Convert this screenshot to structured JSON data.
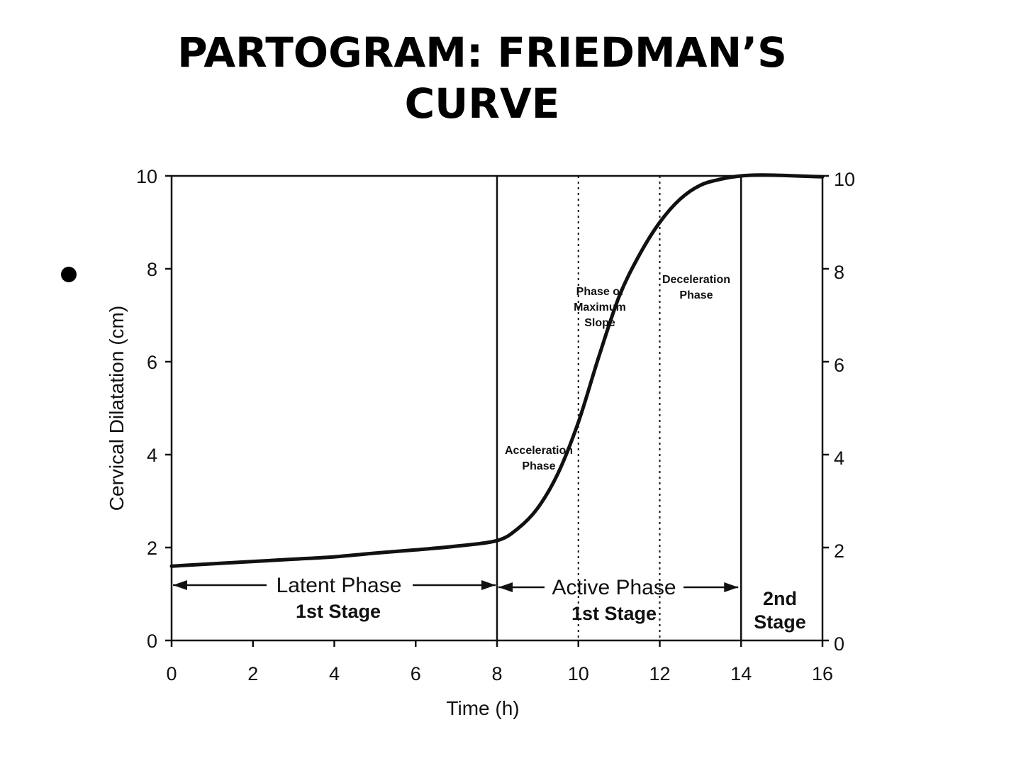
{
  "slide": {
    "title_line1": "PARTOGRAM: FRIEDMAN’S",
    "title_line2": "CURVE"
  },
  "chart_data": {
    "type": "line",
    "xlabel": "Time (h)",
    "ylabel": "Cervical Dilatation (cm)",
    "xlim": [
      0,
      16
    ],
    "ylim": [
      0,
      10
    ],
    "x_ticks": [
      0,
      2,
      4,
      6,
      8,
      10,
      12,
      14,
      16
    ],
    "y_ticks": [
      0,
      2,
      4,
      6,
      8,
      10
    ],
    "right_y_ticks": [
      0,
      2,
      4,
      6,
      8,
      10
    ],
    "grid": false,
    "legend": "none",
    "series": [
      {
        "x": [
          0,
          1,
          2,
          3,
          4,
          5,
          6,
          7,
          8,
          8.5,
          9,
          9.5,
          10,
          10.5,
          11,
          11.5,
          12,
          12.5,
          13,
          13.5,
          14,
          14.5,
          15,
          16
        ],
        "y": [
          1.6,
          1.65,
          1.7,
          1.75,
          1.8,
          1.88,
          1.95,
          2.03,
          2.15,
          2.4,
          2.85,
          3.6,
          4.7,
          6.1,
          7.4,
          8.3,
          9.0,
          9.5,
          9.8,
          9.93,
          10.0,
          10.02,
          10.01,
          9.98
        ]
      }
    ],
    "solid_vertical_lines": [
      8,
      14
    ],
    "dotted_vertical_lines": [
      10,
      12
    ],
    "phase_labels": {
      "acceleration": [
        "Acceleration",
        "Phase"
      ],
      "max_slope": [
        "Phase of",
        "Maximum",
        "Slope"
      ],
      "deceleration": [
        "Deceleration",
        "Phase"
      ]
    },
    "segments": {
      "latent": {
        "phase": "Latent Phase",
        "stage": "1st Stage"
      },
      "active": {
        "phase": "Active Phase",
        "stage": "1st Stage"
      },
      "second": {
        "line1": "2nd",
        "line2": "Stage"
      }
    },
    "colors": {
      "ink": "#111111"
    }
  }
}
